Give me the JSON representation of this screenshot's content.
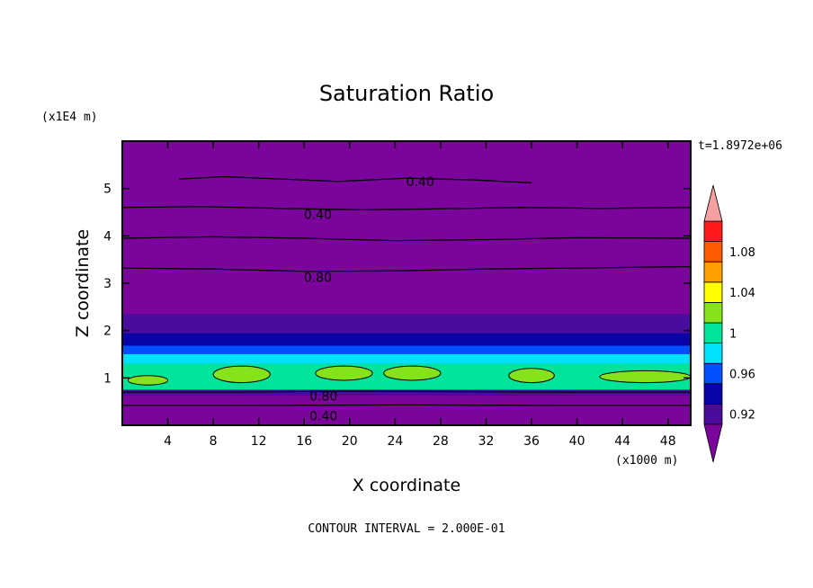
{
  "chart_data": {
    "type": "heatmap",
    "title": "Saturation Ratio",
    "xlabel": "X coordinate",
    "ylabel": "Z coordinate",
    "x_unit": "(x1000 m)",
    "y_unit": "(x1E4 m)",
    "time_label": "t=1.8972e+06",
    "footer": "CONTOUR INTERVAL = 2.000E-01",
    "xlim": [
      0,
      50
    ],
    "ylim": [
      0,
      6
    ],
    "x_ticks": [
      4,
      8,
      12,
      16,
      20,
      24,
      28,
      32,
      36,
      40,
      44,
      48
    ],
    "x_tick_labels": [
      "4",
      "8",
      "12",
      "16",
      "20",
      "24",
      "28",
      "32",
      "36",
      "40",
      "44",
      "48"
    ],
    "y_ticks": [
      1,
      2,
      3,
      4,
      5
    ],
    "y_tick_labels": [
      "1",
      "2",
      "3",
      "4",
      "5"
    ],
    "contour_labels": [
      {
        "text": "0.40",
        "x": 26.2,
        "z": 5.15
      },
      {
        "text": "0.40",
        "x": 17.2,
        "z": 4.45
      },
      {
        "text": "0.80",
        "x": 17.2,
        "z": 3.12
      },
      {
        "text": "0.80",
        "x": 17.7,
        "z": 0.62
      },
      {
        "text": "0.40",
        "x": 17.7,
        "z": 0.2
      }
    ],
    "colorbar": {
      "levels": [
        0.92,
        0.94,
        0.96,
        0.98,
        1.0,
        1.02,
        1.04,
        1.06,
        1.08,
        1.1
      ],
      "colors": [
        "#4b0b9c",
        "#0a04a8",
        "#0050ff",
        "#00e0ff",
        "#00e39b",
        "#86e21b",
        "#ffff00",
        "#ffa000",
        "#ff5a00",
        "#ff1a1a"
      ],
      "under_color": "#7a049c",
      "over_color": "#f4a0a0",
      "tick_values": [
        0.92,
        0.96,
        1.0,
        1.04,
        1.08
      ],
      "tick_labels": [
        "0.92",
        "0.96",
        "1",
        "1.04",
        "1.08"
      ]
    },
    "field_bands": [
      {
        "z0": 0.62,
        "z1": 0.75,
        "color": "#4b0b9c"
      },
      {
        "z0": 0.75,
        "z1": 1.3,
        "color": "#00e39b"
      },
      {
        "z0": 1.3,
        "z1": 1.5,
        "color": "#00e0ff"
      },
      {
        "z0": 1.5,
        "z1": 1.68,
        "color": "#0050ff"
      },
      {
        "z0": 1.68,
        "z1": 1.95,
        "color": "#0a04a8"
      },
      {
        "z0": 1.95,
        "z1": 2.35,
        "color": "#4b0b9c"
      }
    ],
    "patches": [
      {
        "x0": 8,
        "x1": 13,
        "z0": 0.9,
        "z1": 1.25,
        "color": "#86e21b"
      },
      {
        "x0": 17,
        "x1": 22,
        "z0": 0.95,
        "z1": 1.25,
        "color": "#86e21b"
      },
      {
        "x0": 23,
        "x1": 28,
        "z0": 0.95,
        "z1": 1.25,
        "color": "#86e21b"
      },
      {
        "x0": 34,
        "x1": 38,
        "z0": 0.9,
        "z1": 1.2,
        "color": "#86e21b"
      },
      {
        "x0": 42,
        "x1": 50,
        "z0": 0.9,
        "z1": 1.15,
        "color": "#86e21b"
      },
      {
        "x0": 0.5,
        "x1": 4,
        "z0": 0.85,
        "z1": 1.05,
        "color": "#86e21b"
      }
    ],
    "contour_lines": [
      {
        "z": [
          5.2,
          5.25,
          5.2,
          5.15,
          5.22,
          5.18,
          5.12
        ],
        "x": [
          5,
          9,
          14,
          19,
          25,
          31,
          36
        ]
      },
      {
        "z": [
          4.6,
          4.62,
          4.58,
          4.55,
          4.57,
          4.6,
          4.58,
          4.6
        ],
        "x": [
          0,
          7,
          14,
          21,
          28,
          35,
          42,
          50
        ]
      },
      {
        "z": [
          3.95,
          3.98,
          3.95,
          3.9,
          3.92,
          3.96,
          3.95
        ],
        "x": [
          0,
          8,
          16,
          24,
          32,
          40,
          50
        ]
      },
      {
        "z": [
          3.32,
          3.3,
          3.25,
          3.26,
          3.3,
          3.32,
          3.35
        ],
        "x": [
          0,
          8,
          16,
          24,
          32,
          40,
          50
        ]
      },
      {
        "z": [
          0.7,
          0.7,
          0.72,
          0.71,
          0.7,
          0.7
        ],
        "x": [
          0,
          10,
          20,
          30,
          40,
          50
        ]
      },
      {
        "z": [
          0.42,
          0.42,
          0.43,
          0.42,
          0.42
        ],
        "x": [
          0,
          12,
          25,
          38,
          50
        ]
      }
    ]
  }
}
